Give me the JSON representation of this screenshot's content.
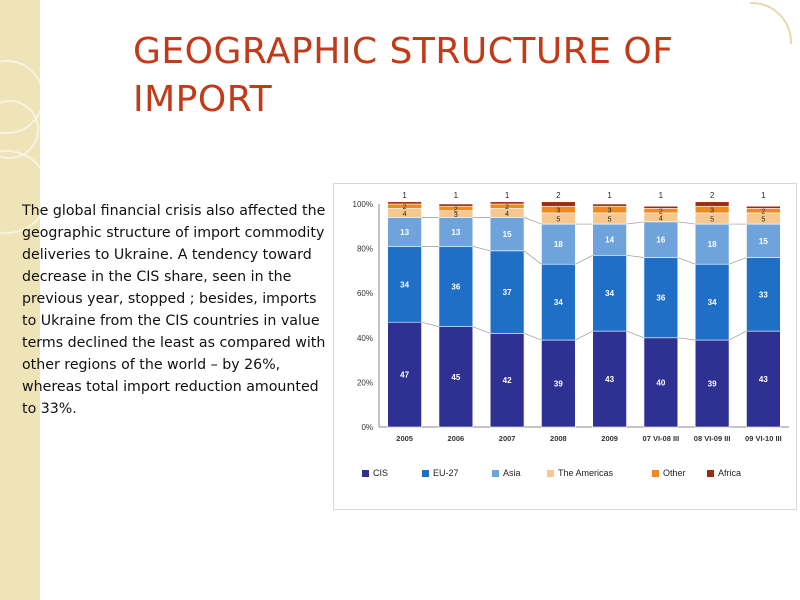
{
  "slide": {
    "title": "GEOGRAPHIC STRUCTURE OF IMPORT",
    "body": " The global financial crisis also affected the geographic structure of import commodity deliveries to Ukraine. A tendency toward decrease in the CIS share, seen in the previous year, stopped ; besides, imports to Ukraine from the CIS countries in value terms declined the least as compared with other regions of the world – by 26%, whereas total import reduction amounted to 33%."
  },
  "colors": {
    "title": "#c23a18",
    "strip": "#efe3b8",
    "series": [
      "#2e3192",
      "#1f6fc6",
      "#6fa3dc",
      "#f6c88f",
      "#f08a1e",
      "#9a2a12"
    ]
  },
  "chart_data": {
    "type": "bar",
    "stacked": true,
    "categories": [
      "2005",
      "2006",
      "2007",
      "2008",
      "2009",
      "07 VI-08 III",
      "08 VI-09 III",
      "09 VI-10 III"
    ],
    "series": [
      {
        "name": "CIS",
        "values": [
          47,
          45,
          42,
          39,
          43,
          40,
          39,
          43
        ]
      },
      {
        "name": "EU-27",
        "values": [
          34,
          36,
          37,
          34,
          34,
          36,
          34,
          33
        ]
      },
      {
        "name": "Asia",
        "values": [
          13,
          13,
          15,
          18,
          14,
          16,
          18,
          15
        ]
      },
      {
        "name": "The Americas",
        "values": [
          4,
          3,
          4,
          5,
          5,
          4,
          5,
          5
        ]
      },
      {
        "name": "Other",
        "values": [
          2,
          2,
          2,
          3,
          3,
          2,
          3,
          2
        ]
      },
      {
        "name": "Africa",
        "values": [
          1,
          1,
          1,
          2,
          1,
          1,
          2,
          1
        ]
      }
    ],
    "yticks": [
      "0%",
      "20%",
      "40%",
      "60%",
      "80%",
      "100%"
    ],
    "ylim": [
      0,
      100
    ],
    "legend_position": "bottom"
  }
}
